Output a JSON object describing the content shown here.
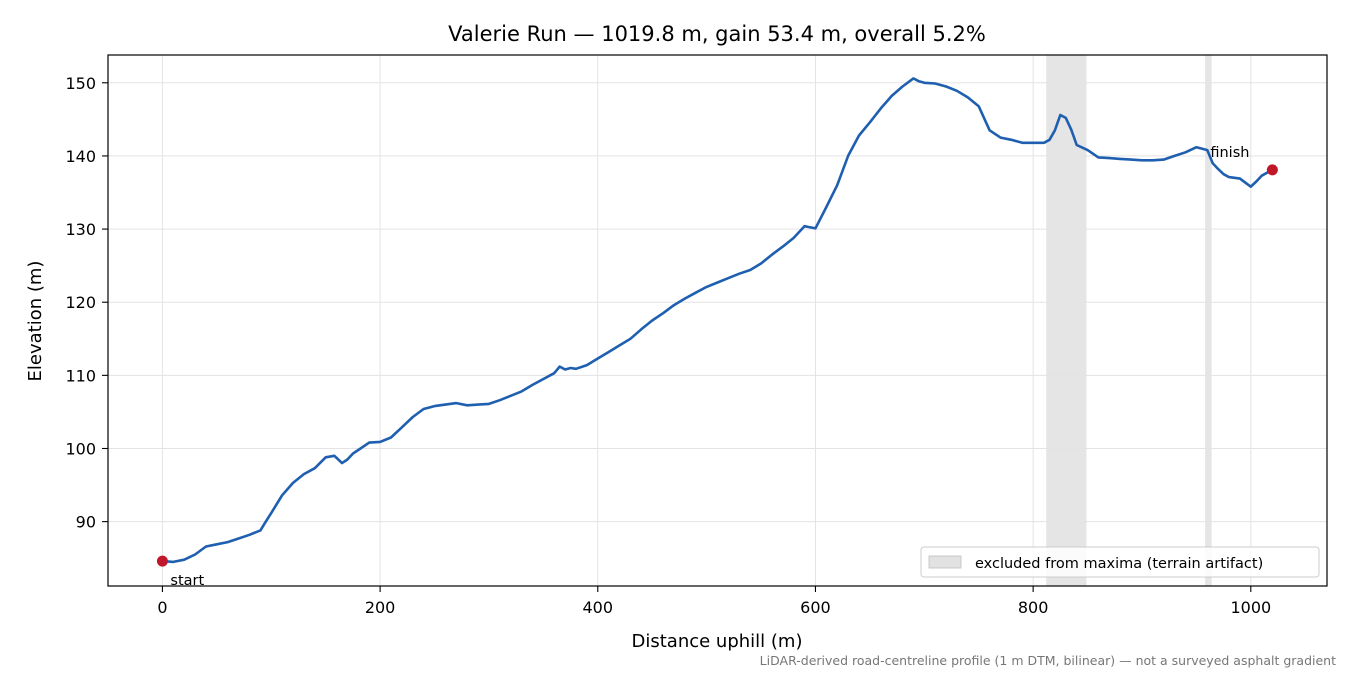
{
  "chart_data": {
    "type": "line",
    "title": "Valerie Run — 1019.8 m, gain 53.4 m, overall 5.2%",
    "xlabel": "Distance uphill (m)",
    "ylabel": "Elevation (m)",
    "xlim": [
      -50,
      1070
    ],
    "ylim": [
      81.2,
      153.8
    ],
    "xticks": [
      0,
      200,
      400,
      600,
      800,
      1000
    ],
    "yticks": [
      90,
      100,
      110,
      120,
      130,
      140,
      150
    ],
    "grid": true,
    "line_color": "#1f5fb0",
    "marker_color": "#c0182a",
    "band_color": "#cfcfcf",
    "series": [
      {
        "x": [
          0,
          10,
          20,
          30,
          40,
          50,
          60,
          70,
          80,
          90,
          95,
          100,
          110,
          120,
          130,
          140,
          150,
          158,
          165,
          170,
          175,
          180,
          190,
          200,
          210,
          220,
          230,
          240,
          250,
          260,
          270,
          280,
          290,
          300,
          310,
          320,
          330,
          340,
          350,
          360,
          365,
          370,
          375,
          380,
          390,
          400,
          410,
          420,
          430,
          440,
          450,
          460,
          470,
          480,
          490,
          500,
          510,
          520,
          530,
          540,
          550,
          560,
          570,
          580,
          590,
          593,
          600,
          610,
          620,
          630,
          640,
          650,
          660,
          670,
          680,
          690,
          695,
          700,
          710,
          720,
          730,
          740,
          750,
          760,
          770,
          780,
          790,
          800,
          810,
          815,
          820,
          825,
          830,
          835,
          840,
          850,
          860,
          870,
          880,
          890,
          900,
          910,
          920,
          930,
          940,
          950,
          955,
          960,
          965,
          970,
          975,
          980,
          990,
          1000,
          1005,
          1010,
          1019.8
        ],
        "y": [
          84.6,
          84.5,
          84.8,
          85.5,
          86.6,
          86.9,
          87.2,
          87.7,
          88.2,
          88.8,
          90.0,
          91.2,
          93.6,
          95.3,
          96.5,
          97.3,
          98.8,
          99.0,
          98.0,
          98.5,
          99.3,
          99.8,
          100.8,
          100.9,
          101.5,
          102.9,
          104.3,
          105.4,
          105.8,
          106.0,
          106.2,
          105.9,
          106.0,
          106.1,
          106.6,
          107.2,
          107.8,
          108.7,
          109.5,
          110.3,
          111.2,
          110.8,
          111.0,
          110.9,
          111.4,
          112.3,
          113.2,
          114.1,
          115.0,
          116.3,
          117.5,
          118.5,
          119.6,
          120.5,
          121.3,
          122.1,
          122.7,
          123.3,
          123.9,
          124.4,
          125.3,
          126.5,
          127.6,
          128.8,
          130.4,
          130.3,
          130.1,
          133.0,
          136.0,
          140.0,
          142.8,
          144.6,
          146.5,
          148.2,
          149.5,
          150.6,
          150.2,
          150.0,
          149.9,
          149.5,
          148.9,
          148.0,
          146.8,
          143.5,
          142.5,
          142.2,
          141.8,
          141.8,
          141.8,
          142.2,
          143.5,
          145.6,
          145.2,
          143.6,
          141.5,
          140.8,
          139.8,
          139.7,
          139.6,
          139.5,
          139.4,
          139.4,
          139.5,
          140.0,
          140.5,
          141.2,
          141.0,
          140.8,
          139.0,
          138.2,
          137.5,
          137.1,
          136.9,
          135.8,
          136.5,
          137.3,
          138.1
        ]
      }
    ],
    "excluded_bands": [
      [
        812,
        849
      ],
      [
        958,
        964
      ]
    ],
    "legend": {
      "position": "lower-right",
      "label": "excluded from maxima (terrain artifact)"
    },
    "annotations": [
      {
        "text": "start",
        "x": 0,
        "y": 84.6
      },
      {
        "text": "finish",
        "x": 1019.8,
        "y": 138.1
      }
    ]
  },
  "footnote": "LiDAR-derived road-centreline profile (1 m DTM, bilinear) — not a surveyed asphalt gradient"
}
